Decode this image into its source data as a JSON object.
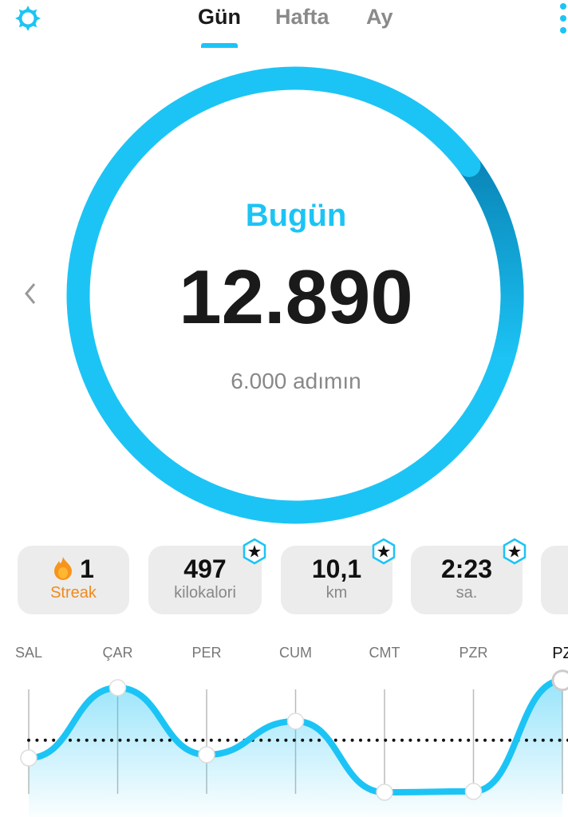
{
  "header": {
    "tabs": [
      {
        "label": "Gün",
        "active": true
      },
      {
        "label": "Hafta"
      },
      {
        "label": "Ay"
      }
    ],
    "settings_icon": "sun-gear-icon",
    "menu_icon": "more-vertical-icon"
  },
  "ring": {
    "title": "Bugün",
    "steps": "12.890",
    "goal_text": "6.000 adımın",
    "progress": 2.148,
    "accent": "#1cc4f5",
    "overlap_color": "#0a86b8"
  },
  "stats": [
    {
      "value": "1",
      "label": "Streak",
      "icon": "flame-icon",
      "label_color": "#f08a1c"
    },
    {
      "value": "497",
      "label": "kilokalori",
      "badge": "star-badge-icon"
    },
    {
      "value": "10,1",
      "label": "km",
      "badge": "star-badge-icon"
    },
    {
      "value": "2:23",
      "label": "sa.",
      "badge": "star-badge-icon"
    }
  ],
  "chart_data": {
    "type": "area",
    "categories": [
      "SAL",
      "ÇAR",
      "PER",
      "CUM",
      "CMT",
      "PZR",
      "PZ"
    ],
    "values": [
      3950,
      12040,
      4320,
      8180,
      0,
      100,
      12890
    ],
    "goal": 6000,
    "highlighted": "PZ",
    "grid": "vertical"
  }
}
